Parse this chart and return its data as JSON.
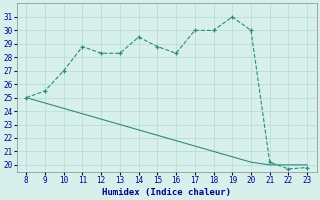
{
  "xlabel": "Humidex (Indice chaleur)",
  "x": [
    8,
    9,
    10,
    11,
    12,
    13,
    14,
    15,
    16,
    17,
    18,
    19,
    20,
    21,
    22,
    23
  ],
  "y_main": [
    25.0,
    25.5,
    27.0,
    28.8,
    28.3,
    28.3,
    29.5,
    28.8,
    28.3,
    30.0,
    30.0,
    31.0,
    30.0,
    20.2,
    19.7,
    19.8
  ],
  "y_second": [
    25.0,
    24.6,
    24.2,
    23.8,
    23.4,
    23.0,
    22.6,
    22.2,
    21.8,
    21.4,
    21.0,
    20.6,
    20.2,
    20.0,
    20.0,
    20.0
  ],
  "line_color": "#2e8b74",
  "bg_color": "#d8f0ec",
  "grid_color": "#b8ddd8",
  "xlim": [
    7.5,
    23.5
  ],
  "ylim": [
    19.5,
    32.0
  ],
  "yticks": [
    20,
    21,
    22,
    23,
    24,
    25,
    26,
    27,
    28,
    29,
    30,
    31
  ],
  "xticks": [
    8,
    9,
    10,
    11,
    12,
    13,
    14,
    15,
    16,
    17,
    18,
    19,
    20,
    21,
    22,
    23
  ],
  "xlabel_color": "#00008b",
  "tick_color": "#00008b"
}
